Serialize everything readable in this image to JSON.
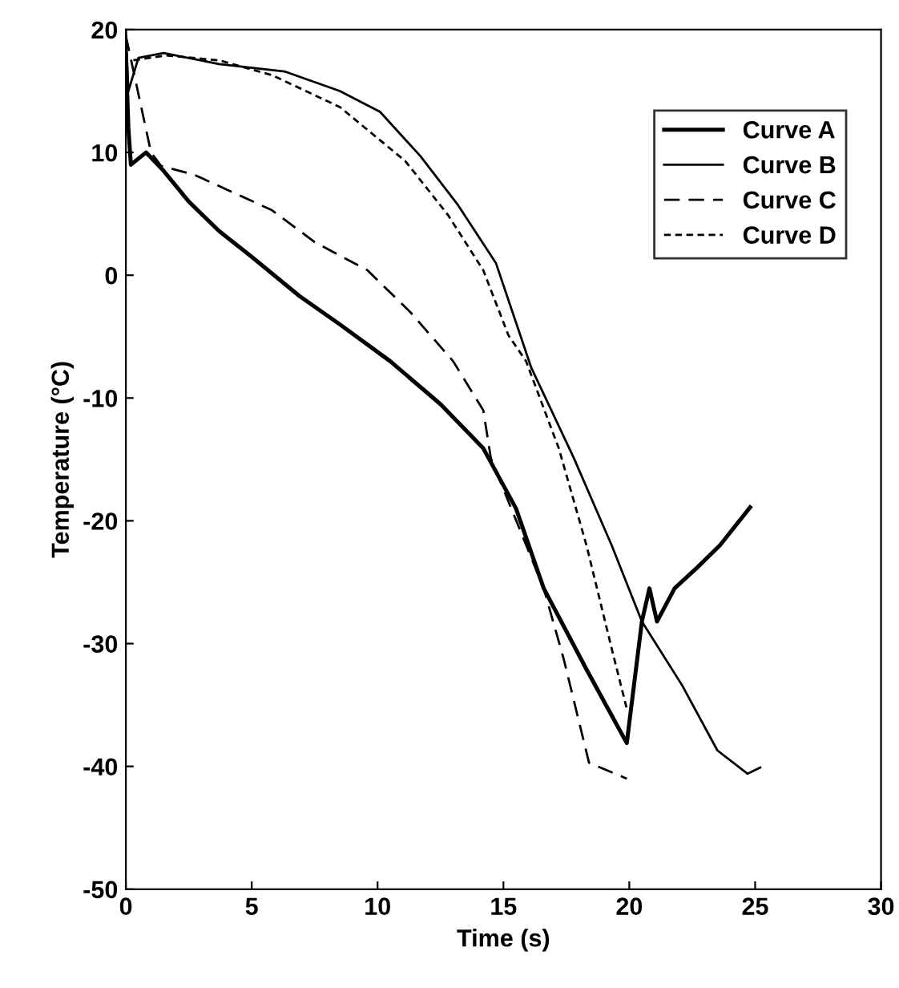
{
  "chart_data": {
    "type": "line",
    "xlabel": "Time (s)",
    "ylabel": "Temperature (°C)",
    "xlim": [
      0,
      30
    ],
    "ylim": [
      -50,
      20
    ],
    "xticks": [
      0,
      5,
      10,
      15,
      20,
      25,
      30
    ],
    "yticks": [
      -50,
      -40,
      -30,
      -20,
      -10,
      0,
      10,
      20
    ],
    "grid": false,
    "legend": "top right",
    "marker": "none",
    "series": [
      {
        "name": "Curve A",
        "color": "#000000",
        "line_style": "solid",
        "x": [
          0,
          0.1,
          0.2,
          0.8,
          1.5,
          2.5,
          3.7,
          5,
          6.9,
          8.5,
          10.5,
          12.5,
          14.2,
          15.5,
          16.6,
          18.3,
          19.9,
          20.5,
          20.8,
          21.1,
          21.8,
          22.7,
          23.6,
          24.8
        ],
        "values": [
          18,
          12,
          9,
          10,
          8.5,
          6,
          3.6,
          1.5,
          -1.7,
          -4,
          -7,
          -10.5,
          -14.1,
          -19,
          -25.5,
          -32.1,
          -38.1,
          -28.2,
          -25.5,
          -28.2,
          -25.5,
          -23.8,
          -22,
          -18.9
        ]
      },
      {
        "name": "Curve B",
        "color": "#000000",
        "line_style": "solid",
        "x": [
          0,
          0.1,
          0.5,
          1.5,
          3.7,
          6.3,
          8.5,
          10.1,
          11.7,
          13.2,
          14.7,
          16.1,
          17.8,
          19.3,
          20.5,
          22.1,
          23.5,
          24.7,
          25.2
        ],
        "values": [
          20,
          15,
          17.7,
          18.1,
          17.2,
          16.6,
          15,
          13.3,
          9.7,
          5.7,
          1,
          -7.5,
          -14.9,
          -22,
          -28.2,
          -33.4,
          -38.7,
          -40.6,
          -40.1
        ]
      },
      {
        "name": "Curve C",
        "color": "#000000",
        "line_style": "dashed",
        "x": [
          0,
          1.0,
          1.4,
          2.7,
          5.8,
          7.5,
          9.6,
          11.3,
          13,
          14.2,
          14.5,
          16.6,
          17.4,
          18.4,
          19.9
        ],
        "values": [
          19.5,
          10,
          8.9,
          8.2,
          5.3,
          2.7,
          0.4,
          -3,
          -7,
          -11,
          -14.9,
          -25.5,
          -31.3,
          -39.7,
          -41
        ]
      },
      {
        "name": "Curve D",
        "color": "#000000",
        "line_style": "dotted",
        "x": [
          0.3,
          1.6,
          3.7,
          5.8,
          8.5,
          11.1,
          12.8,
          14.2,
          15.2,
          15.9,
          17.2,
          18.3,
          19.3,
          19.9
        ],
        "values": [
          17.5,
          17.9,
          17.5,
          16.3,
          13.7,
          9.3,
          4.9,
          0.4,
          -4.9,
          -7,
          -14.1,
          -22,
          -30.4,
          -35.3
        ]
      }
    ]
  }
}
